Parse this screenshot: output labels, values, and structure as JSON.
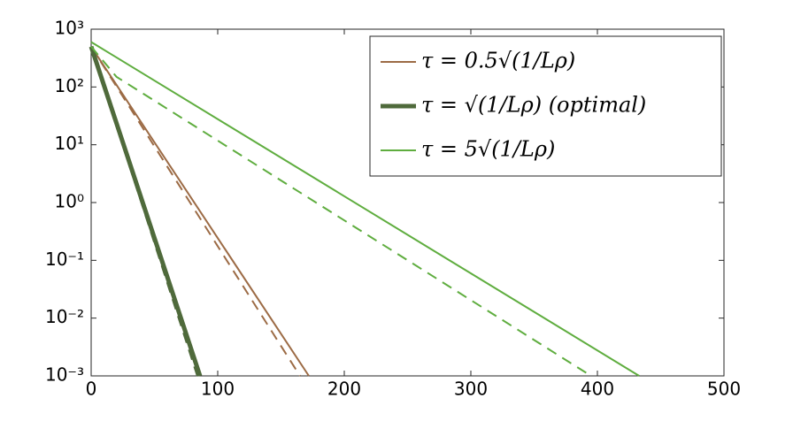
{
  "chart_data": {
    "type": "line",
    "log_y": true,
    "xlim": [
      0,
      500
    ],
    "xticks": [
      0,
      100,
      200,
      300,
      400,
      500
    ],
    "ylim": [
      0.001,
      1000
    ],
    "yticks": [
      {
        "value": 0.001,
        "label": "10⁻³"
      },
      {
        "value": 0.01,
        "label": "10⁻²"
      },
      {
        "value": 0.1,
        "label": "10⁻¹"
      },
      {
        "value": 1,
        "label": "10⁰"
      },
      {
        "value": 10,
        "label": "10¹"
      },
      {
        "value": 100,
        "label": "10²"
      },
      {
        "value": 1000,
        "label": "10³"
      }
    ],
    "legend": "upper right",
    "series": [
      {
        "name": "τ = 0.5√(1/Lρ)",
        "color": "#9c6b45",
        "width": 2,
        "dash": false,
        "x": [
          0,
          172
        ],
        "values": [
          500,
          0.001
        ]
      },
      {
        "color": "#9c6b45",
        "width": 2,
        "dash": true,
        "x": [
          0,
          165
        ],
        "values": [
          500,
          0.001
        ]
      },
      {
        "name": "τ = √(1/Lρ) (optimal)",
        "color": "#4f6a3b",
        "width": 5,
        "dash": false,
        "x": [
          0,
          86
        ],
        "values": [
          500,
          0.001
        ]
      },
      {
        "color": "#4f6a3b",
        "width": 2.5,
        "dash": true,
        "x": [
          0,
          84
        ],
        "values": [
          500,
          0.001
        ]
      },
      {
        "name": "τ = 5√(1/Lρ)",
        "color": "#5fad3f",
        "width": 2,
        "dash": false,
        "x": [
          0,
          433
        ],
        "values": [
          600,
          0.001
        ]
      },
      {
        "color": "#5fad3f",
        "width": 2,
        "dash": true,
        "x": [
          0,
          20,
          395
        ],
        "values": [
          500,
          150,
          0.001
        ]
      }
    ]
  }
}
